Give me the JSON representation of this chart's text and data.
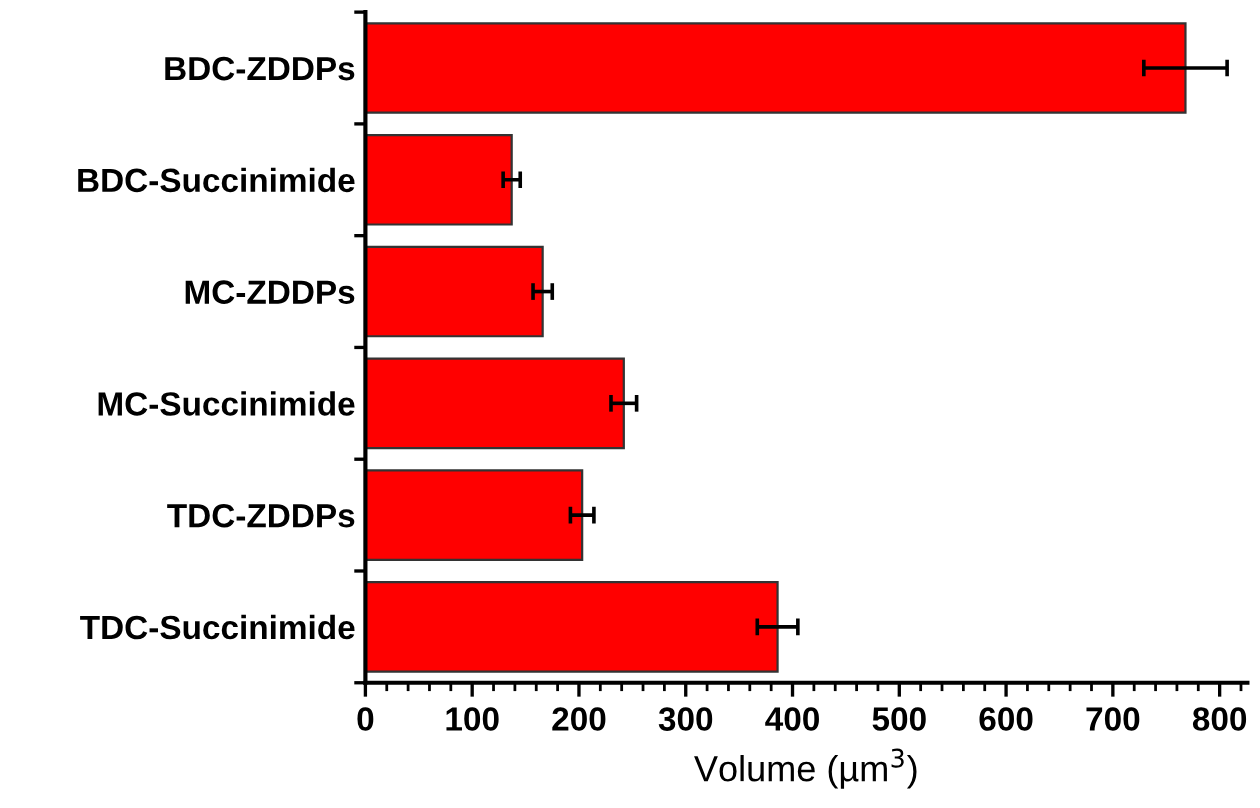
{
  "chart_data": {
    "type": "bar",
    "orientation": "horizontal",
    "xlabel": "Volume (µm$^{3}$)",
    "categories": [
      "BDC-ZDDPs",
      "BDC-Succinimide",
      "MC-ZDDPs",
      "MC-Succinimide",
      "TDC-ZDDPs",
      "TDC-Succinimide"
    ],
    "values": [
      768,
      137,
      166,
      242,
      203,
      386
    ],
    "errors": [
      39,
      8,
      9,
      12,
      11,
      19
    ],
    "color": "#ff0000",
    "xlim": [
      0,
      826
    ],
    "xticks": [
      0,
      100,
      200,
      300,
      400,
      500,
      600,
      700,
      800
    ],
    "grid": false,
    "legend": false
  }
}
